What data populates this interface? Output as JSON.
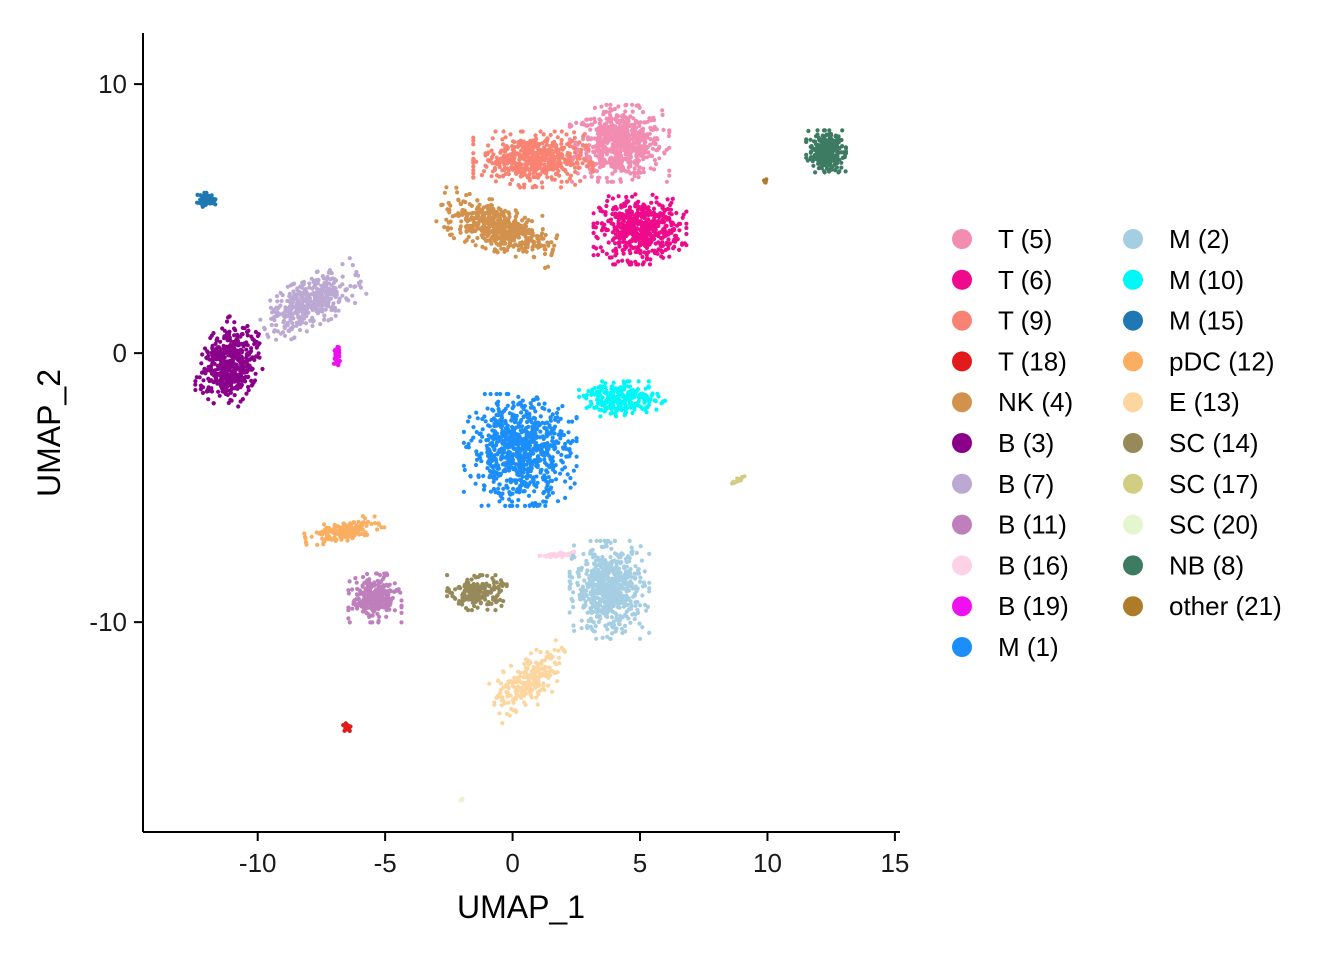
{
  "chart_data": {
    "type": "scatter",
    "xlabel": "UMAP_1",
    "ylabel": "UMAP_2",
    "xlim": [
      -14.5,
      15.2
    ],
    "ylim": [
      -17.8,
      11.9
    ],
    "xticks": [
      -10,
      -5,
      0,
      5,
      10,
      15
    ],
    "yticks": [
      10,
      0,
      -10
    ],
    "xtick_labels": [
      "-10",
      "-5",
      "0",
      "5",
      "10",
      "15"
    ],
    "ytick_labels": [
      "10",
      "0",
      "-10"
    ],
    "legend_position": "right",
    "legend_columns": 2,
    "clusters": [
      {
        "label": "T (5)",
        "color": "#F28CB1",
        "cx": 4.2,
        "cy": 7.8,
        "sx": 1.5,
        "sy": 1.1,
        "n": 650,
        "rot": 0
      },
      {
        "label": "T (6)",
        "color": "#EE0A8A",
        "cx": 5.0,
        "cy": 4.6,
        "sx": 1.4,
        "sy": 1.0,
        "n": 550,
        "rot": 0
      },
      {
        "label": "T (9)",
        "color": "#F98372",
        "cx": 0.8,
        "cy": 7.2,
        "sx": 1.8,
        "sy": 0.8,
        "n": 520,
        "rot": 0
      },
      {
        "label": "T (18)",
        "color": "#E31A1C",
        "cx": -6.5,
        "cy": -13.9,
        "sx": 0.15,
        "sy": 0.15,
        "n": 25,
        "rot": 0
      },
      {
        "label": "NK (4)",
        "color": "#D2914C",
        "cx": -0.6,
        "cy": 4.7,
        "sx": 1.8,
        "sy": 0.7,
        "n": 500,
        "rot": -0.3
      },
      {
        "label": "B (3)",
        "color": "#8B008B",
        "cx": -11.1,
        "cy": -0.4,
        "sx": 0.9,
        "sy": 1.2,
        "n": 480,
        "rot": -0.6
      },
      {
        "label": "B (7)",
        "color": "#BCA9D3",
        "cx": -7.9,
        "cy": 1.9,
        "sx": 1.6,
        "sy": 0.7,
        "n": 420,
        "rot": 0.45
      },
      {
        "label": "B (11)",
        "color": "#BE7FBC",
        "cx": -5.4,
        "cy": -9.1,
        "sx": 0.8,
        "sy": 0.7,
        "n": 280,
        "rot": 0
      },
      {
        "label": "B (16)",
        "color": "#FDD1E6",
        "cx": 1.8,
        "cy": -7.5,
        "sx": 0.6,
        "sy": 0.08,
        "n": 50,
        "rot": 0.12
      },
      {
        "label": "B (19)",
        "color": "#EE10EE",
        "cx": -6.9,
        "cy": -0.1,
        "sx": 0.1,
        "sy": 0.3,
        "n": 40,
        "rot": 0
      },
      {
        "label": "M (1)",
        "color": "#1C8EFA",
        "cx": 0.3,
        "cy": -3.6,
        "sx": 1.7,
        "sy": 1.6,
        "n": 800,
        "rot": 0
      },
      {
        "label": "M (2)",
        "color": "#A6CEE3",
        "cx": 3.8,
        "cy": -8.8,
        "sx": 1.2,
        "sy": 1.4,
        "n": 650,
        "rot": 0
      },
      {
        "label": "M (10)",
        "color": "#00F7F7",
        "cx": 4.3,
        "cy": -1.7,
        "sx": 1.3,
        "sy": 0.5,
        "n": 250,
        "rot": 0
      },
      {
        "label": "M (15)",
        "color": "#1F78B4",
        "cx": -12.0,
        "cy": 5.7,
        "sx": 0.35,
        "sy": 0.2,
        "n": 60,
        "rot": 0
      },
      {
        "label": "pDC (12)",
        "color": "#FCAE60",
        "cx": -6.6,
        "cy": -6.6,
        "sx": 1.2,
        "sy": 0.3,
        "n": 160,
        "rot": 0.2
      },
      {
        "label": "E (13)",
        "color": "#FCD69E",
        "cx": 0.6,
        "cy": -12.2,
        "sx": 1.4,
        "sy": 0.7,
        "n": 220,
        "rot": 0.7
      },
      {
        "label": "SC (14)",
        "color": "#968A5A",
        "cx": -1.4,
        "cy": -8.9,
        "sx": 0.9,
        "sy": 0.5,
        "n": 190,
        "rot": 0
      },
      {
        "label": "SC (17)",
        "color": "#D1CD82",
        "cx": 8.9,
        "cy": -4.7,
        "sx": 0.25,
        "sy": 0.06,
        "n": 20,
        "rot": 0.5
      },
      {
        "label": "SC (20)",
        "color": "#E5F5D0",
        "cx": -2.0,
        "cy": -16.6,
        "sx": 0.05,
        "sy": 0.05,
        "n": 5,
        "rot": 0
      },
      {
        "label": "NB (8)",
        "color": "#3D7B63",
        "cx": 12.3,
        "cy": 7.5,
        "sx": 0.6,
        "sy": 0.6,
        "n": 320,
        "rot": 0
      },
      {
        "label": "other (21)",
        "color": "#AE7B28",
        "cx": 9.9,
        "cy": 6.4,
        "sx": 0.05,
        "sy": 0.05,
        "n": 6,
        "rot": 0
      }
    ]
  }
}
